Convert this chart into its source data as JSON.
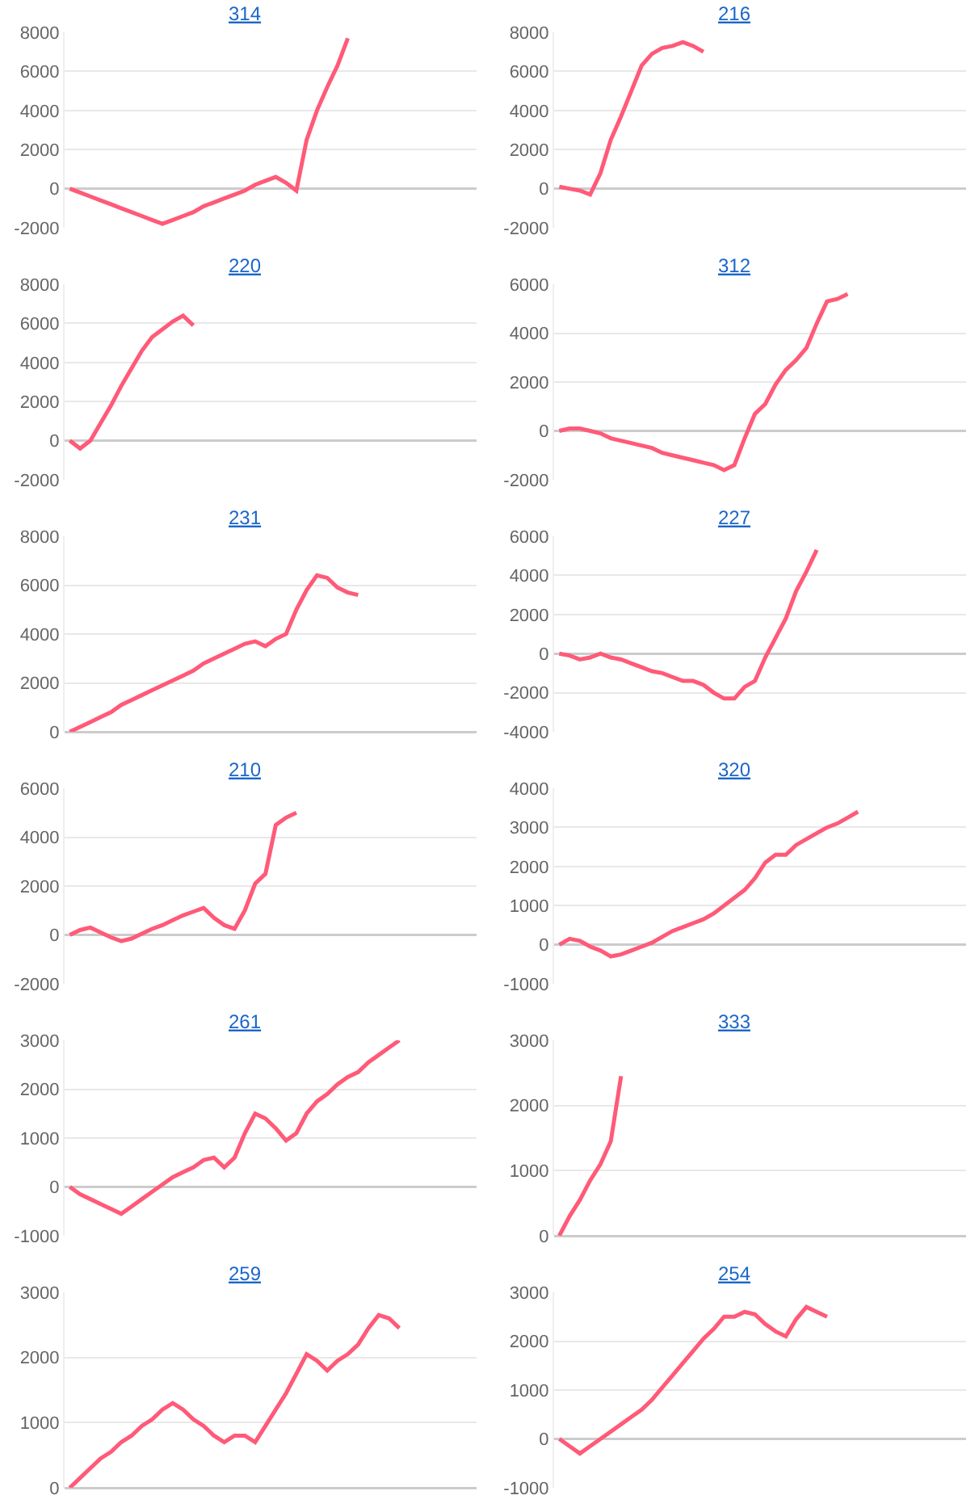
{
  "chart_data": [
    {
      "type": "line",
      "title": "314",
      "color": "#ff5a78",
      "ylim": [
        -2000,
        8000
      ],
      "yticks": [
        -2000,
        0,
        2000,
        4000,
        6000,
        8000
      ],
      "grid": "y",
      "tick_labels": "y",
      "categories": [
        null,
        null,
        null,
        null,
        null,
        null,
        null,
        null,
        null,
        null,
        null,
        null,
        null,
        null,
        null,
        null,
        null,
        null,
        null,
        null,
        null,
        null,
        null,
        null,
        null,
        null,
        null,
        null,
        null,
        null,
        null,
        null,
        null,
        null,
        null,
        null,
        null,
        null,
        null,
        null
      ],
      "values": [
        0,
        -200,
        -400,
        -600,
        -800,
        -1000,
        -1200,
        -1400,
        -1600,
        -1800,
        -1600,
        -1400,
        -1200,
        -900,
        -700,
        -500,
        -300,
        -100,
        200,
        400,
        600,
        300,
        -100,
        2500,
        4000,
        5200,
        6300,
        7700,
        null,
        null,
        null,
        null,
        null,
        null,
        null,
        null,
        null,
        null,
        null,
        null
      ]
    },
    {
      "type": "line",
      "title": "216",
      "color": "#ff5a78",
      "ylim": [
        -2000,
        8000
      ],
      "yticks": [
        -2000,
        0,
        2000,
        4000,
        6000,
        8000
      ],
      "grid": "y",
      "tick_labels": "y",
      "categories": [
        null,
        null,
        null,
        null,
        null,
        null,
        null,
        null,
        null,
        null,
        null,
        null,
        null,
        null,
        null,
        null,
        null,
        null,
        null,
        null,
        null,
        null,
        null,
        null,
        null,
        null,
        null,
        null,
        null,
        null,
        null,
        null,
        null,
        null,
        null,
        null,
        null,
        null,
        null,
        null
      ],
      "values": [
        100,
        0,
        -100,
        -300,
        800,
        2500,
        3700,
        5000,
        6300,
        6900,
        7200,
        7300,
        7500,
        7300,
        7000,
        null,
        null,
        null,
        null,
        null,
        null,
        null,
        null,
        null,
        null,
        null,
        null,
        null,
        null,
        null,
        null,
        null,
        null,
        null,
        null,
        null,
        null,
        null,
        null,
        null
      ]
    },
    {
      "type": "line",
      "title": "220",
      "color": "#ff5a78",
      "ylim": [
        -2000,
        8000
      ],
      "yticks": [
        -2000,
        0,
        2000,
        4000,
        6000,
        8000
      ],
      "grid": "y",
      "tick_labels": "y",
      "categories": [
        null,
        null,
        null,
        null,
        null,
        null,
        null,
        null,
        null,
        null,
        null,
        null,
        null,
        null,
        null,
        null,
        null,
        null,
        null,
        null,
        null,
        null,
        null,
        null,
        null,
        null,
        null,
        null,
        null,
        null,
        null,
        null,
        null,
        null,
        null,
        null,
        null,
        null,
        null,
        null
      ],
      "values": [
        0,
        -400,
        0,
        900,
        1800,
        2800,
        3700,
        4600,
        5300,
        5700,
        6100,
        6400,
        5900,
        null,
        null,
        null,
        null,
        null,
        null,
        null,
        null,
        null,
        null,
        null,
        null,
        null,
        null,
        null,
        null,
        null,
        null,
        null,
        null,
        null,
        null,
        null,
        null,
        null,
        null,
        null
      ]
    },
    {
      "type": "line",
      "title": "312",
      "color": "#ff5a78",
      "ylim": [
        -2000,
        6000
      ],
      "yticks": [
        -2000,
        0,
        2000,
        4000,
        6000
      ],
      "grid": "y",
      "tick_labels": "y",
      "categories": [
        null,
        null,
        null,
        null,
        null,
        null,
        null,
        null,
        null,
        null,
        null,
        null,
        null,
        null,
        null,
        null,
        null,
        null,
        null,
        null,
        null,
        null,
        null,
        null,
        null,
        null,
        null,
        null,
        null,
        null,
        null,
        null,
        null,
        null,
        null,
        null,
        null,
        null,
        null,
        null
      ],
      "values": [
        0,
        100,
        100,
        0,
        -100,
        -300,
        -400,
        -500,
        -600,
        -700,
        -900,
        -1000,
        -1100,
        -1200,
        -1300,
        -1400,
        -1600,
        -1400,
        -300,
        700,
        1100,
        1900,
        2500,
        2900,
        3400,
        4400,
        5300,
        5400,
        5600,
        null,
        null,
        null,
        null,
        null,
        null,
        null,
        null,
        null,
        null,
        null
      ]
    },
    {
      "type": "line",
      "title": "231",
      "color": "#ff5a78",
      "ylim": [
        0,
        8000
      ],
      "yticks": [
        0,
        2000,
        4000,
        6000,
        8000
      ],
      "grid": "y",
      "tick_labels": "y",
      "categories": [
        null,
        null,
        null,
        null,
        null,
        null,
        null,
        null,
        null,
        null,
        null,
        null,
        null,
        null,
        null,
        null,
        null,
        null,
        null,
        null,
        null,
        null,
        null,
        null,
        null,
        null,
        null,
        null,
        null,
        null,
        null,
        null,
        null,
        null,
        null,
        null,
        null,
        null,
        null,
        null
      ],
      "values": [
        0,
        200,
        400,
        600,
        800,
        1100,
        1300,
        1500,
        1700,
        1900,
        2100,
        2300,
        2500,
        2800,
        3000,
        3200,
        3400,
        3600,
        3700,
        3500,
        3800,
        4000,
        5000,
        5800,
        6400,
        6300,
        5900,
        5700,
        5600,
        null,
        null,
        null,
        null,
        null,
        null,
        null,
        null,
        null,
        null,
        null
      ]
    },
    {
      "type": "line",
      "title": "227",
      "color": "#ff5a78",
      "ylim": [
        -4000,
        6000
      ],
      "yticks": [
        -4000,
        -2000,
        0,
        2000,
        4000,
        6000
      ],
      "grid": "y",
      "tick_labels": "y",
      "categories": [
        null,
        null,
        null,
        null,
        null,
        null,
        null,
        null,
        null,
        null,
        null,
        null,
        null,
        null,
        null,
        null,
        null,
        null,
        null,
        null,
        null,
        null,
        null,
        null,
        null,
        null,
        null,
        null,
        null,
        null,
        null,
        null,
        null,
        null,
        null,
        null,
        null,
        null,
        null,
        null
      ],
      "values": [
        0,
        -100,
        -300,
        -200,
        0,
        -200,
        -300,
        -500,
        -700,
        -900,
        -1000,
        -1200,
        -1400,
        -1400,
        -1600,
        -2000,
        -2300,
        -2300,
        -1700,
        -1400,
        -200,
        800,
        1800,
        3200,
        4200,
        5300,
        null,
        null,
        null,
        null,
        null,
        null,
        null,
        null,
        null,
        null,
        null,
        null,
        null,
        null
      ]
    },
    {
      "type": "line",
      "title": "210",
      "color": "#ff5a78",
      "ylim": [
        -2000,
        6000
      ],
      "yticks": [
        -2000,
        0,
        2000,
        4000,
        6000
      ],
      "grid": "y",
      "tick_labels": "y",
      "categories": [
        null,
        null,
        null,
        null,
        null,
        null,
        null,
        null,
        null,
        null,
        null,
        null,
        null,
        null,
        null,
        null,
        null,
        null,
        null,
        null,
        null,
        null,
        null,
        null,
        null,
        null,
        null,
        null,
        null,
        null,
        null,
        null,
        null,
        null,
        null,
        null,
        null,
        null,
        null,
        null
      ],
      "values": [
        0,
        200,
        300,
        100,
        -100,
        -250,
        -150,
        50,
        250,
        400,
        600,
        800,
        950,
        1100,
        700,
        400,
        250,
        1000,
        2100,
        2500,
        4500,
        4800,
        5000,
        null,
        null,
        null,
        null,
        null,
        null,
        null,
        null,
        null,
        null,
        null,
        null,
        null,
        null,
        null,
        null,
        null
      ]
    },
    {
      "type": "line",
      "title": "320",
      "color": "#ff5a78",
      "ylim": [
        -1000,
        4000
      ],
      "yticks": [
        -1000,
        0,
        1000,
        2000,
        3000,
        4000
      ],
      "grid": "y",
      "tick_labels": "y",
      "categories": [
        null,
        null,
        null,
        null,
        null,
        null,
        null,
        null,
        null,
        null,
        null,
        null,
        null,
        null,
        null,
        null,
        null,
        null,
        null,
        null,
        null,
        null,
        null,
        null,
        null,
        null,
        null,
        null,
        null,
        null,
        null,
        null,
        null,
        null,
        null,
        null,
        null,
        null,
        null,
        null
      ],
      "values": [
        0,
        150,
        100,
        -50,
        -150,
        -300,
        -250,
        -150,
        -50,
        50,
        200,
        350,
        450,
        550,
        650,
        800,
        1000,
        1200,
        1400,
        1700,
        2100,
        2300,
        2300,
        2550,
        2700,
        2850,
        3000,
        3100,
        3250,
        3400,
        null,
        null,
        null,
        null,
        null,
        null,
        null,
        null,
        null,
        null
      ]
    },
    {
      "type": "line",
      "title": "261",
      "color": "#ff5a78",
      "ylim": [
        -1000,
        3000
      ],
      "yticks": [
        -1000,
        0,
        1000,
        2000,
        3000
      ],
      "grid": "y",
      "tick_labels": "y",
      "categories": [
        null,
        null,
        null,
        null,
        null,
        null,
        null,
        null,
        null,
        null,
        null,
        null,
        null,
        null,
        null,
        null,
        null,
        null,
        null,
        null,
        null,
        null,
        null,
        null,
        null,
        null,
        null,
        null,
        null,
        null,
        null,
        null,
        null,
        null,
        null,
        null,
        null,
        null,
        null,
        null
      ],
      "values": [
        0,
        -150,
        -250,
        -350,
        -450,
        -550,
        -400,
        -250,
        -100,
        50,
        200,
        300,
        400,
        550,
        600,
        400,
        600,
        1100,
        1500,
        1400,
        1200,
        950,
        1100,
        1500,
        1750,
        1900,
        2100,
        2250,
        2350,
        2550,
        2700,
        2850,
        3000,
        null,
        null,
        null,
        null,
        null,
        null,
        null
      ]
    },
    {
      "type": "line",
      "title": "333",
      "color": "#ff5a78",
      "ylim": [
        0,
        3000
      ],
      "yticks": [
        0,
        1000,
        2000,
        3000
      ],
      "grid": "y",
      "tick_labels": "y",
      "categories": [
        null,
        null,
        null,
        null,
        null,
        null,
        null,
        null,
        null,
        null,
        null,
        null,
        null,
        null,
        null,
        null,
        null,
        null,
        null,
        null,
        null,
        null,
        null,
        null,
        null,
        null,
        null,
        null,
        null,
        null,
        null,
        null,
        null,
        null,
        null,
        null,
        null,
        null,
        null,
        null
      ],
      "values": [
        0,
        300,
        550,
        850,
        1100,
        1450,
        2450,
        null,
        null,
        null,
        null,
        null,
        null,
        null,
        null,
        null,
        null,
        null,
        null,
        null,
        null,
        null,
        null,
        null,
        null,
        null,
        null,
        null,
        null,
        null,
        null,
        null,
        null,
        null,
        null,
        null,
        null,
        null,
        null,
        null
      ]
    },
    {
      "type": "line",
      "title": "259",
      "color": "#ff5a78",
      "ylim": [
        0,
        3000
      ],
      "yticks": [
        0,
        1000,
        2000,
        3000
      ],
      "grid": "y",
      "tick_labels": "y",
      "categories": [
        null,
        null,
        null,
        null,
        null,
        null,
        null,
        null,
        null,
        null,
        null,
        null,
        null,
        null,
        null,
        null,
        null,
        null,
        null,
        null,
        null,
        null,
        null,
        null,
        null,
        null,
        null,
        null,
        null,
        null,
        null,
        null,
        null,
        null,
        null,
        null,
        null,
        null,
        null,
        null
      ],
      "values": [
        0,
        150,
        300,
        450,
        550,
        700,
        800,
        950,
        1050,
        1200,
        1300,
        1200,
        1050,
        950,
        800,
        700,
        800,
        800,
        700,
        950,
        1200,
        1450,
        1750,
        2050,
        1950,
        1800,
        1950,
        2050,
        2200,
        2450,
        2650,
        2600,
        2450,
        null,
        null,
        null,
        null,
        null,
        null,
        null
      ]
    },
    {
      "type": "line",
      "title": "254",
      "color": "#ff5a78",
      "ylim": [
        -1000,
        3000
      ],
      "yticks": [
        -1000,
        0,
        1000,
        2000,
        3000
      ],
      "grid": "y",
      "tick_labels": "y",
      "categories": [
        null,
        null,
        null,
        null,
        null,
        null,
        null,
        null,
        null,
        null,
        null,
        null,
        null,
        null,
        null,
        null,
        null,
        null,
        null,
        null,
        null,
        null,
        null,
        null,
        null,
        null,
        null,
        null,
        null,
        null,
        null,
        null,
        null,
        null,
        null,
        null,
        null,
        null,
        null,
        null
      ],
      "values": [
        0,
        -150,
        -300,
        -150,
        0,
        150,
        300,
        450,
        600,
        800,
        1050,
        1300,
        1550,
        1800,
        2050,
        2250,
        2500,
        2500,
        2600,
        2550,
        2350,
        2200,
        2100,
        2450,
        2700,
        2600,
        2500,
        null,
        null,
        null,
        null,
        null,
        null,
        null,
        null,
        null,
        null,
        null,
        null,
        null
      ]
    }
  ]
}
